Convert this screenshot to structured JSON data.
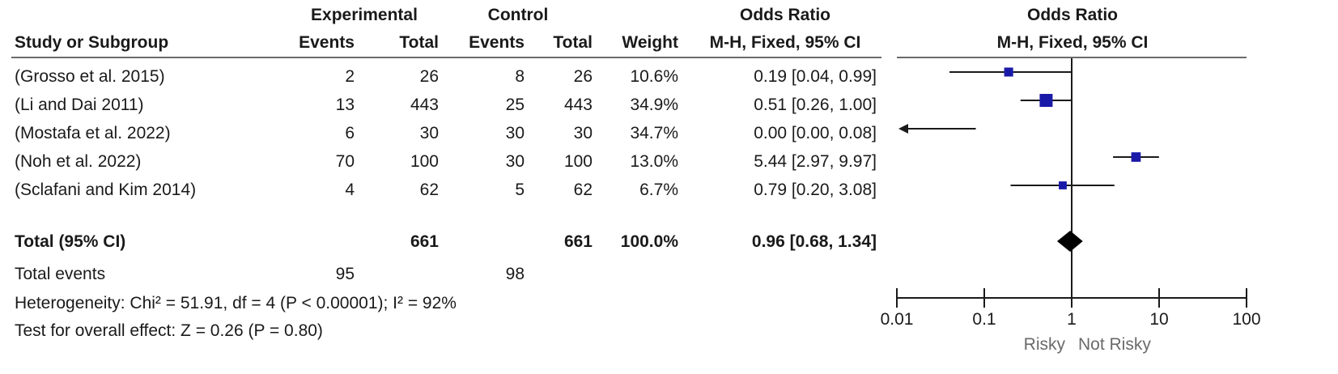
{
  "headers": {
    "experimental": "Experimental",
    "control": "Control",
    "odds_ratio": "Odds Ratio",
    "study": "Study or Subgroup",
    "events": "Events",
    "total": "Total",
    "weight": "Weight",
    "method": "M-H, Fixed, 95% CI",
    "plot_title": "Odds Ratio",
    "plot_method": "M-H, Fixed, 95% CI"
  },
  "studies": [
    {
      "name": "(Grosso et al. 2015)",
      "exp_events": "2",
      "exp_total": "26",
      "ctl_events": "8",
      "ctl_total": "26",
      "weight": "10.6%",
      "ci_text": "0.19 [0.04, 0.99]"
    },
    {
      "name": "(Li and Dai 2011)",
      "exp_events": "13",
      "exp_total": "443",
      "ctl_events": "25",
      "ctl_total": "443",
      "weight": "34.9%",
      "ci_text": "0.51 [0.26, 1.00]"
    },
    {
      "name": "(Mostafa et al. 2022)",
      "exp_events": "6",
      "exp_total": "30",
      "ctl_events": "30",
      "ctl_total": "30",
      "weight": "34.7%",
      "ci_text": "0.00 [0.00, 0.08]"
    },
    {
      "name": "(Noh et al. 2022)",
      "exp_events": "70",
      "exp_total": "100",
      "ctl_events": "30",
      "ctl_total": "100",
      "weight": "13.0%",
      "ci_text": "5.44 [2.97, 9.97]"
    },
    {
      "name": "(Sclafani and Kim 2014)",
      "exp_events": "4",
      "exp_total": "62",
      "ctl_events": "5",
      "ctl_total": "62",
      "weight": "6.7%",
      "ci_text": "0.79 [0.20, 3.08]"
    }
  ],
  "total": {
    "label": "Total (95% CI)",
    "exp_total": "661",
    "ctl_total": "661",
    "weight": "100.0%",
    "ci_text": "0.96 [0.68, 1.34]"
  },
  "total_events": {
    "label": "Total events",
    "exp": "95",
    "ctl": "98"
  },
  "heterogeneity": "Heterogeneity: Chi² = 51.91, df = 4 (P < 0.00001); I² = 92%",
  "overall_effect": "Test for overall effect: Z = 0.26 (P = 0.80)",
  "colors": {
    "square": "#1a1aa8",
    "line": "#1a1a1a",
    "diamond": "#000000",
    "divider": "#6b6b6b"
  },
  "chart_data": {
    "type": "forest",
    "x_scale": "log",
    "xlim": [
      0.01,
      100
    ],
    "ticks": [
      0.01,
      0.1,
      1,
      10,
      100
    ],
    "tick_labels": [
      "0.01",
      "0.1",
      "1",
      "10",
      "100"
    ],
    "xlabel_left": "Risky",
    "xlabel_right": "Not Risky",
    "reference": 1,
    "studies": [
      {
        "or": 0.19,
        "lo": 0.04,
        "hi": 0.99,
        "weight": 10.6
      },
      {
        "or": 0.51,
        "lo": 0.26,
        "hi": 1.0,
        "weight": 34.9
      },
      {
        "or": 0.0,
        "lo": 0.0,
        "hi": 0.08,
        "weight": 34.7,
        "lower_truncated": true
      },
      {
        "or": 5.44,
        "lo": 2.97,
        "hi": 9.97,
        "weight": 13.0
      },
      {
        "or": 0.79,
        "lo": 0.2,
        "hi": 3.08,
        "weight": 6.7
      }
    ],
    "pooled": {
      "or": 0.96,
      "lo": 0.68,
      "hi": 1.34
    }
  }
}
